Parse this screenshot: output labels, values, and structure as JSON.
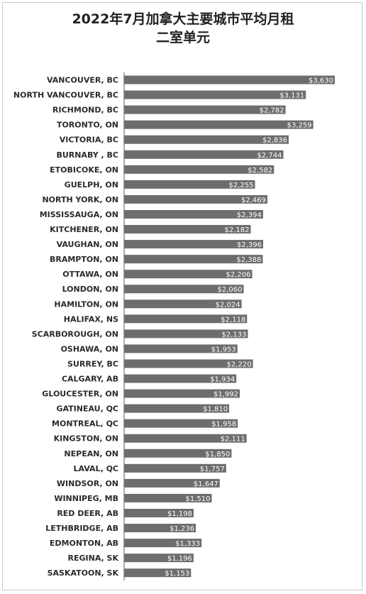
{
  "chart_data": {
    "type": "bar",
    "orientation": "horizontal",
    "title": "2022年7月加拿大主要城市平均月租",
    "subtitle": "二室单元",
    "categories": [
      "VANCOUVER, BC",
      "NORTH VANCOUVER, BC",
      "RICHMOND, BC",
      "TORONTO, ON",
      "VICTORIA, BC",
      "BURNABY , BC",
      "ETOBICOKE, ON",
      "GUELPH, ON",
      "NORTH YORK, ON",
      "MISSISSAUGA, ON",
      "KITCHENER, ON",
      "VAUGHAN, ON",
      "BRAMPTON, ON",
      "OTTAWA, ON",
      "LONDON, ON",
      "HAMILTON, ON",
      "HALIFAX, NS",
      "SCARBOROUGH, ON",
      "OSHAWA, ON",
      "SURREY, BC",
      "CALGARY, AB",
      "GLOUCESTER, ON",
      "GATINEAU, QC",
      "MONTREAL, QC",
      "KINGSTON, ON",
      "NEPEAN, ON",
      "LAVAL, QC",
      "WINDSOR, ON",
      "WINNIPEG, MB",
      "RED DEER, AB",
      "LETHBRIDGE, AB",
      "EDMONTON, AB",
      "REGINA, SK",
      "SASKATOON, SK"
    ],
    "values": [
      3630,
      3131,
      2782,
      3259,
      2836,
      2744,
      2582,
      2255,
      2469,
      2394,
      2182,
      2396,
      2388,
      2206,
      2060,
      2024,
      2118,
      2133,
      1953,
      2220,
      1934,
      1992,
      1810,
      1958,
      2111,
      1850,
      1757,
      1647,
      1510,
      1198,
      1236,
      1333,
      1196,
      1153
    ],
    "data_labels": [
      "$3,630",
      "$3,131",
      "$2,782",
      "$3,259",
      "$2,836",
      "$2,744",
      "$2,582",
      "$2,255",
      "$2,469",
      "$2,394",
      "$2,182",
      "$2,396",
      "$2,388",
      "$2,206",
      "$2,060",
      "$2,024",
      "$2,118",
      "$2,133",
      "$1,953",
      "$2,220",
      "$1,934",
      "$1,992",
      "$1,810",
      "$1,958",
      "$2,111",
      "$1,850",
      "$1,757",
      "$1,647",
      "$1,510",
      "$1,198",
      "$1,236",
      "$1,333",
      "$1,196",
      "$1,153"
    ],
    "xlim": [
      0,
      4200
    ],
    "bar_color": "#6d6d6d",
    "grid": false,
    "legend": "none"
  }
}
